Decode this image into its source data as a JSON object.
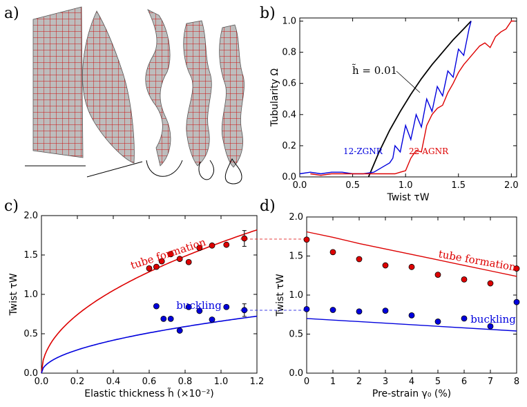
{
  "panel_labels": {
    "a": "a)",
    "b": "b)",
    "c": "c)",
    "d": "d)"
  },
  "chart_data": [
    {
      "panel": "b",
      "type": "line",
      "xlabel": "Twist τW",
      "ylabel": "Tubularity Ω",
      "xlim": [
        0,
        2.05
      ],
      "ylim": [
        0,
        1.02
      ],
      "xticks": [
        "0.0",
        "0.5",
        "1.0",
        "1.5",
        "2.0"
      ],
      "yticks": [
        "0.0",
        "0.2",
        "0.4",
        "0.6",
        "0.8",
        "1.0"
      ],
      "annotation": "h̃ = 0.01",
      "series": [
        {
          "name": "h̃ = 0.01",
          "color": "#000000",
          "x": [
            0.65,
            0.75,
            0.85,
            0.95,
            1.05,
            1.15,
            1.25,
            1.35,
            1.45,
            1.55,
            1.62
          ],
          "y": [
            0.0,
            0.16,
            0.3,
            0.42,
            0.53,
            0.63,
            0.72,
            0.8,
            0.88,
            0.95,
            1.0
          ]
        },
        {
          "name": "12-ZGNR",
          "color": "#0000dd",
          "x": [
            0.0,
            0.1,
            0.2,
            0.3,
            0.4,
            0.5,
            0.6,
            0.7,
            0.75,
            0.8,
            0.85,
            0.88,
            0.9,
            0.95,
            1.0,
            1.05,
            1.1,
            1.15,
            1.2,
            1.25,
            1.3,
            1.35,
            1.4,
            1.45,
            1.5,
            1.55,
            1.6,
            1.62
          ],
          "y": [
            0.02,
            0.03,
            0.02,
            0.03,
            0.03,
            0.02,
            0.02,
            0.03,
            0.05,
            0.07,
            0.09,
            0.12,
            0.2,
            0.16,
            0.33,
            0.24,
            0.4,
            0.32,
            0.5,
            0.42,
            0.58,
            0.52,
            0.68,
            0.64,
            0.82,
            0.78,
            0.95,
            1.0
          ]
        },
        {
          "name": "22-AGNR",
          "color": "#dd0000",
          "x": [
            0.1,
            0.2,
            0.3,
            0.4,
            0.5,
            0.6,
            0.7,
            0.8,
            0.9,
            0.95,
            1.0,
            1.05,
            1.1,
            1.15,
            1.2,
            1.25,
            1.3,
            1.35,
            1.4,
            1.45,
            1.5,
            1.55,
            1.6,
            1.65,
            1.7,
            1.75,
            1.8,
            1.85,
            1.9,
            1.95,
            2.0,
            2.03
          ],
          "y": [
            0.02,
            0.01,
            0.02,
            0.02,
            0.02,
            0.02,
            0.02,
            0.02,
            0.02,
            0.03,
            0.04,
            0.12,
            0.17,
            0.16,
            0.33,
            0.4,
            0.44,
            0.46,
            0.54,
            0.6,
            0.67,
            0.72,
            0.76,
            0.8,
            0.84,
            0.86,
            0.83,
            0.9,
            0.93,
            0.95,
            1.0,
            1.0
          ]
        }
      ],
      "labels": [
        "12-ZGNR",
        "22-AGNR"
      ]
    },
    {
      "panel": "c",
      "type": "scatter",
      "xlabel": "Elastic thickness h̃ (×10⁻²)",
      "ylabel": "Twist τW",
      "xlim": [
        0,
        1.2
      ],
      "ylim": [
        0,
        2.0
      ],
      "xticks": [
        "0.0",
        "0.2",
        "0.4",
        "0.6",
        "0.8",
        "1.0",
        "1.2"
      ],
      "yticks": [
        "0.0",
        "0.5",
        "1.0",
        "1.5",
        "2.0"
      ],
      "series": [
        {
          "name": "tube formation",
          "color": "#dd0000",
          "points_x": [
            0.6,
            0.64,
            0.67,
            0.72,
            0.77,
            0.82,
            0.88,
            0.95,
            1.03,
            1.13
          ],
          "points_y": [
            1.33,
            1.35,
            1.42,
            1.51,
            1.45,
            1.41,
            1.59,
            1.62,
            1.63,
            1.71
          ],
          "curve_coef": 1.66
        },
        {
          "name": "buckling",
          "color": "#0000dd",
          "points_x": [
            0.64,
            0.68,
            0.72,
            0.77,
            0.82,
            0.88,
            0.95,
            1.03,
            1.13
          ],
          "points_y": [
            0.85,
            0.69,
            0.69,
            0.54,
            0.84,
            0.79,
            0.68,
            0.84,
            0.8
          ],
          "curve_coef": 0.66
        }
      ],
      "errorbars": [
        {
          "x": 1.13,
          "y": 1.71,
          "err": 0.1
        },
        {
          "x": 1.13,
          "y": 0.8,
          "err": 0.08
        }
      ]
    },
    {
      "panel": "d",
      "type": "scatter",
      "xlabel": "Pre-strain γ₀ (%)",
      "ylabel": "Twist τW",
      "xlim": [
        0,
        8
      ],
      "ylim": [
        0,
        2.0
      ],
      "xticks": [
        "0",
        "1",
        "2",
        "3",
        "4",
        "5",
        "6",
        "7",
        "8"
      ],
      "yticks": [
        "0.0",
        "0.5",
        "1.0",
        "1.5",
        "2.0"
      ],
      "series": [
        {
          "name": "tube formation",
          "color": "#dd0000",
          "points_x": [
            0,
            1,
            2,
            3,
            4,
            5,
            6,
            7,
            8
          ],
          "points_y": [
            1.71,
            1.55,
            1.46,
            1.38,
            1.36,
            1.26,
            1.2,
            1.15,
            1.34
          ],
          "line_x": [
            0,
            1,
            2,
            3,
            4,
            5,
            6,
            7,
            8
          ],
          "line_y": [
            1.81,
            1.74,
            1.66,
            1.59,
            1.52,
            1.45,
            1.38,
            1.31,
            1.24
          ]
        },
        {
          "name": "buckling",
          "color": "#0000dd",
          "points_x": [
            0,
            1,
            2,
            3,
            4,
            5,
            6,
            7,
            8
          ],
          "points_y": [
            0.82,
            0.81,
            0.79,
            0.8,
            0.74,
            0.66,
            0.7,
            0.6,
            0.91
          ],
          "line_x": [
            0,
            8
          ],
          "line_y": [
            0.7,
            0.54
          ]
        }
      ]
    }
  ]
}
